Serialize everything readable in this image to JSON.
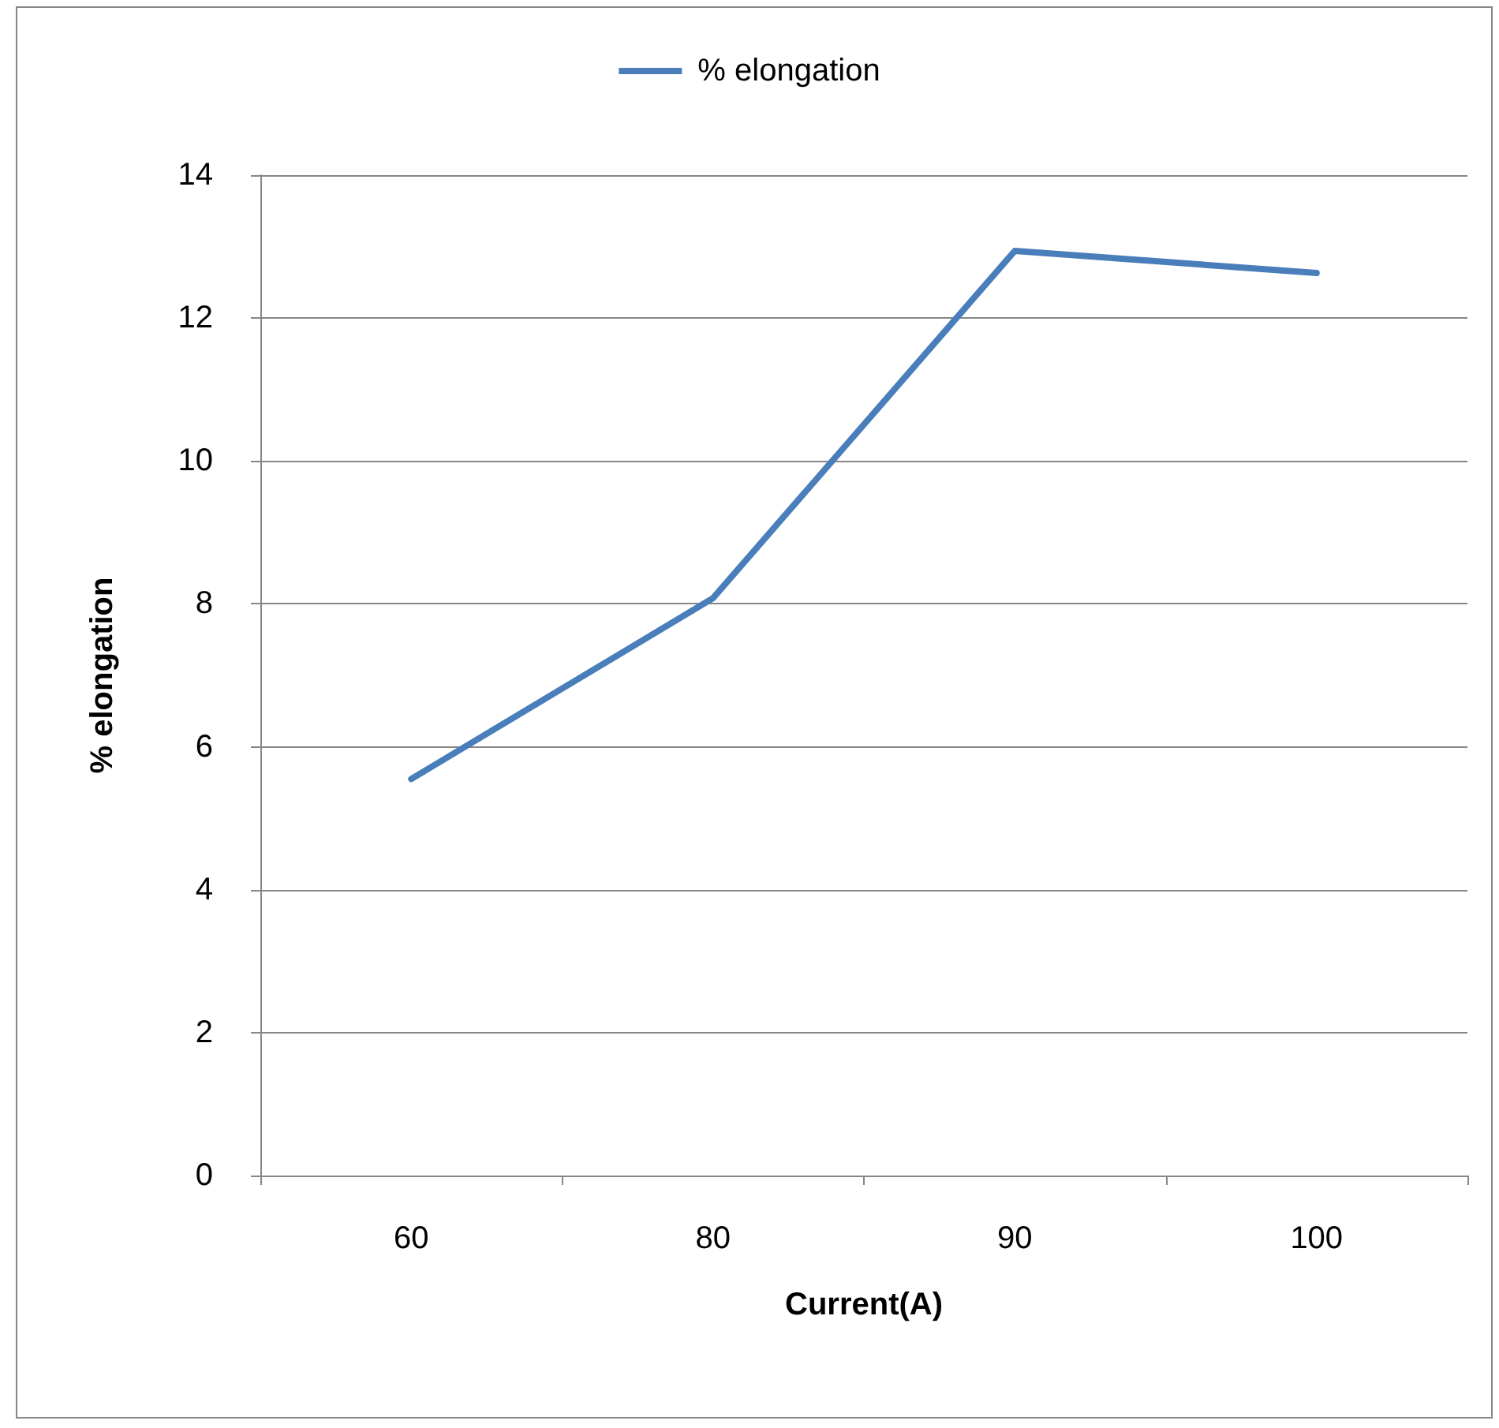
{
  "chart_data": {
    "type": "line",
    "xlabel": "Current(A)",
    "ylabel": "% elongation",
    "categories": [
      "60",
      "80",
      "90",
      "100"
    ],
    "series": [
      {
        "name": "% elongation",
        "color": "#4a7ebb",
        "values": [
          5.55,
          8.08,
          12.94,
          12.63
        ]
      }
    ],
    "ylim": [
      0,
      14
    ],
    "yticks": [
      0,
      2,
      4,
      6,
      8,
      10,
      12,
      14
    ],
    "grid": "y",
    "legend": "top",
    "marker": "none",
    "line_style": "solid"
  }
}
